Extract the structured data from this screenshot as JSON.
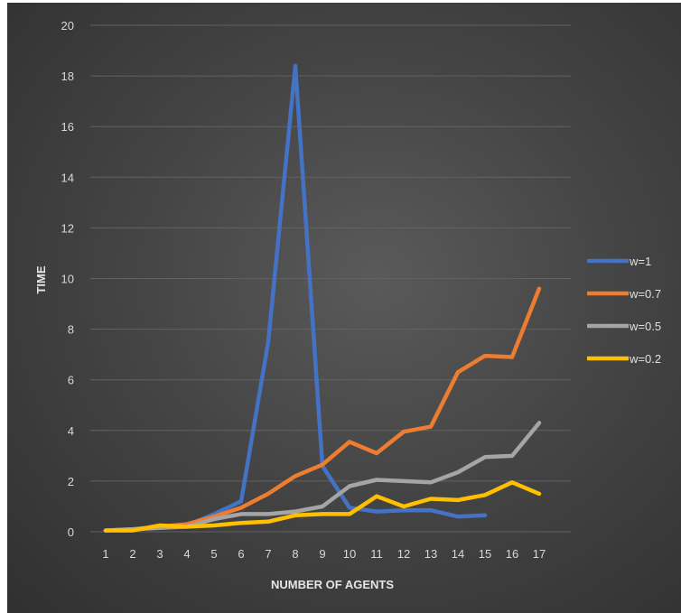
{
  "chart_data": {
    "type": "line",
    "title": "",
    "xlabel": "NUMBER OF AGENTS",
    "ylabel": "TIME",
    "ylim": [
      0,
      20
    ],
    "yticks": [
      0,
      2,
      4,
      6,
      8,
      10,
      12,
      14,
      16,
      18,
      20
    ],
    "categories": [
      "1",
      "2",
      "3",
      "4",
      "5",
      "6",
      "7",
      "8",
      "9",
      "10",
      "11",
      "12",
      "13",
      "14",
      "15",
      "16",
      "17"
    ],
    "grid": true,
    "legend_position": "right",
    "series": [
      {
        "name": "w=1",
        "color": "#4472C4",
        "values": [
          0.05,
          0.1,
          0.2,
          0.25,
          0.7,
          1.2,
          7.5,
          18.4,
          2.6,
          0.95,
          0.8,
          0.85,
          0.85,
          0.6,
          0.65,
          null,
          null
        ]
      },
      {
        "name": "w=0.7",
        "color": "#ED7D31",
        "values": [
          0.05,
          0.1,
          0.2,
          0.3,
          0.6,
          0.95,
          1.5,
          2.2,
          2.65,
          3.55,
          3.1,
          3.95,
          4.15,
          6.3,
          6.95,
          6.9,
          9.6
        ]
      },
      {
        "name": "w=0.5",
        "color": "#A5A5A5",
        "values": [
          0.05,
          0.1,
          0.15,
          0.2,
          0.5,
          0.7,
          0.7,
          0.8,
          1.0,
          1.8,
          2.05,
          2.0,
          1.95,
          2.35,
          2.95,
          3.0,
          4.3
        ]
      },
      {
        "name": "w=0.2",
        "color": "#FFC000",
        "values": [
          0.05,
          0.05,
          0.25,
          0.2,
          0.25,
          0.35,
          0.4,
          0.65,
          0.7,
          0.7,
          1.4,
          1.0,
          1.3,
          1.25,
          1.45,
          1.95,
          1.5
        ]
      }
    ]
  }
}
